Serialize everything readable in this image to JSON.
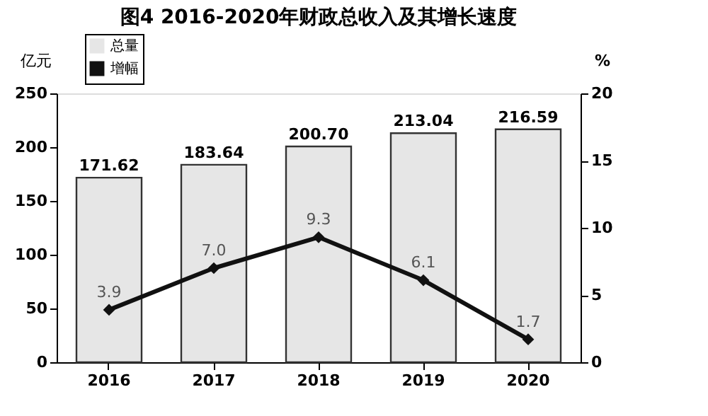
{
  "chart_data": {
    "type": "bar",
    "title": "图4 2016-2020年财政总收入及其增长速度",
    "categories": [
      "2016",
      "2017",
      "2018",
      "2019",
      "2020"
    ],
    "series": [
      {
        "name": "总量",
        "color": "#e6e6e6",
        "values": [
          171.62,
          183.64,
          200.7,
          213.04,
          216.59
        ],
        "value_labels": [
          "171.62",
          "183.64",
          "200.70",
          "213.04",
          "216.59"
        ]
      },
      {
        "name": "增幅",
        "type": "line",
        "axis": "y2",
        "color": "#111111",
        "values": [
          3.9,
          7.0,
          9.3,
          6.1,
          1.7
        ],
        "value_labels": [
          "3.9",
          "7.0",
          "9.3",
          "6.1",
          "1.7"
        ]
      }
    ],
    "ylabel": "亿元",
    "y2label": "%",
    "ylim": [
      0,
      250
    ],
    "yticks": [
      0,
      50,
      100,
      150,
      200,
      250
    ],
    "y2lim": [
      0,
      20
    ],
    "y2ticks": [
      0,
      5,
      10,
      15,
      20
    ],
    "legend": "top left",
    "marker": "diamond",
    "grid": false
  }
}
